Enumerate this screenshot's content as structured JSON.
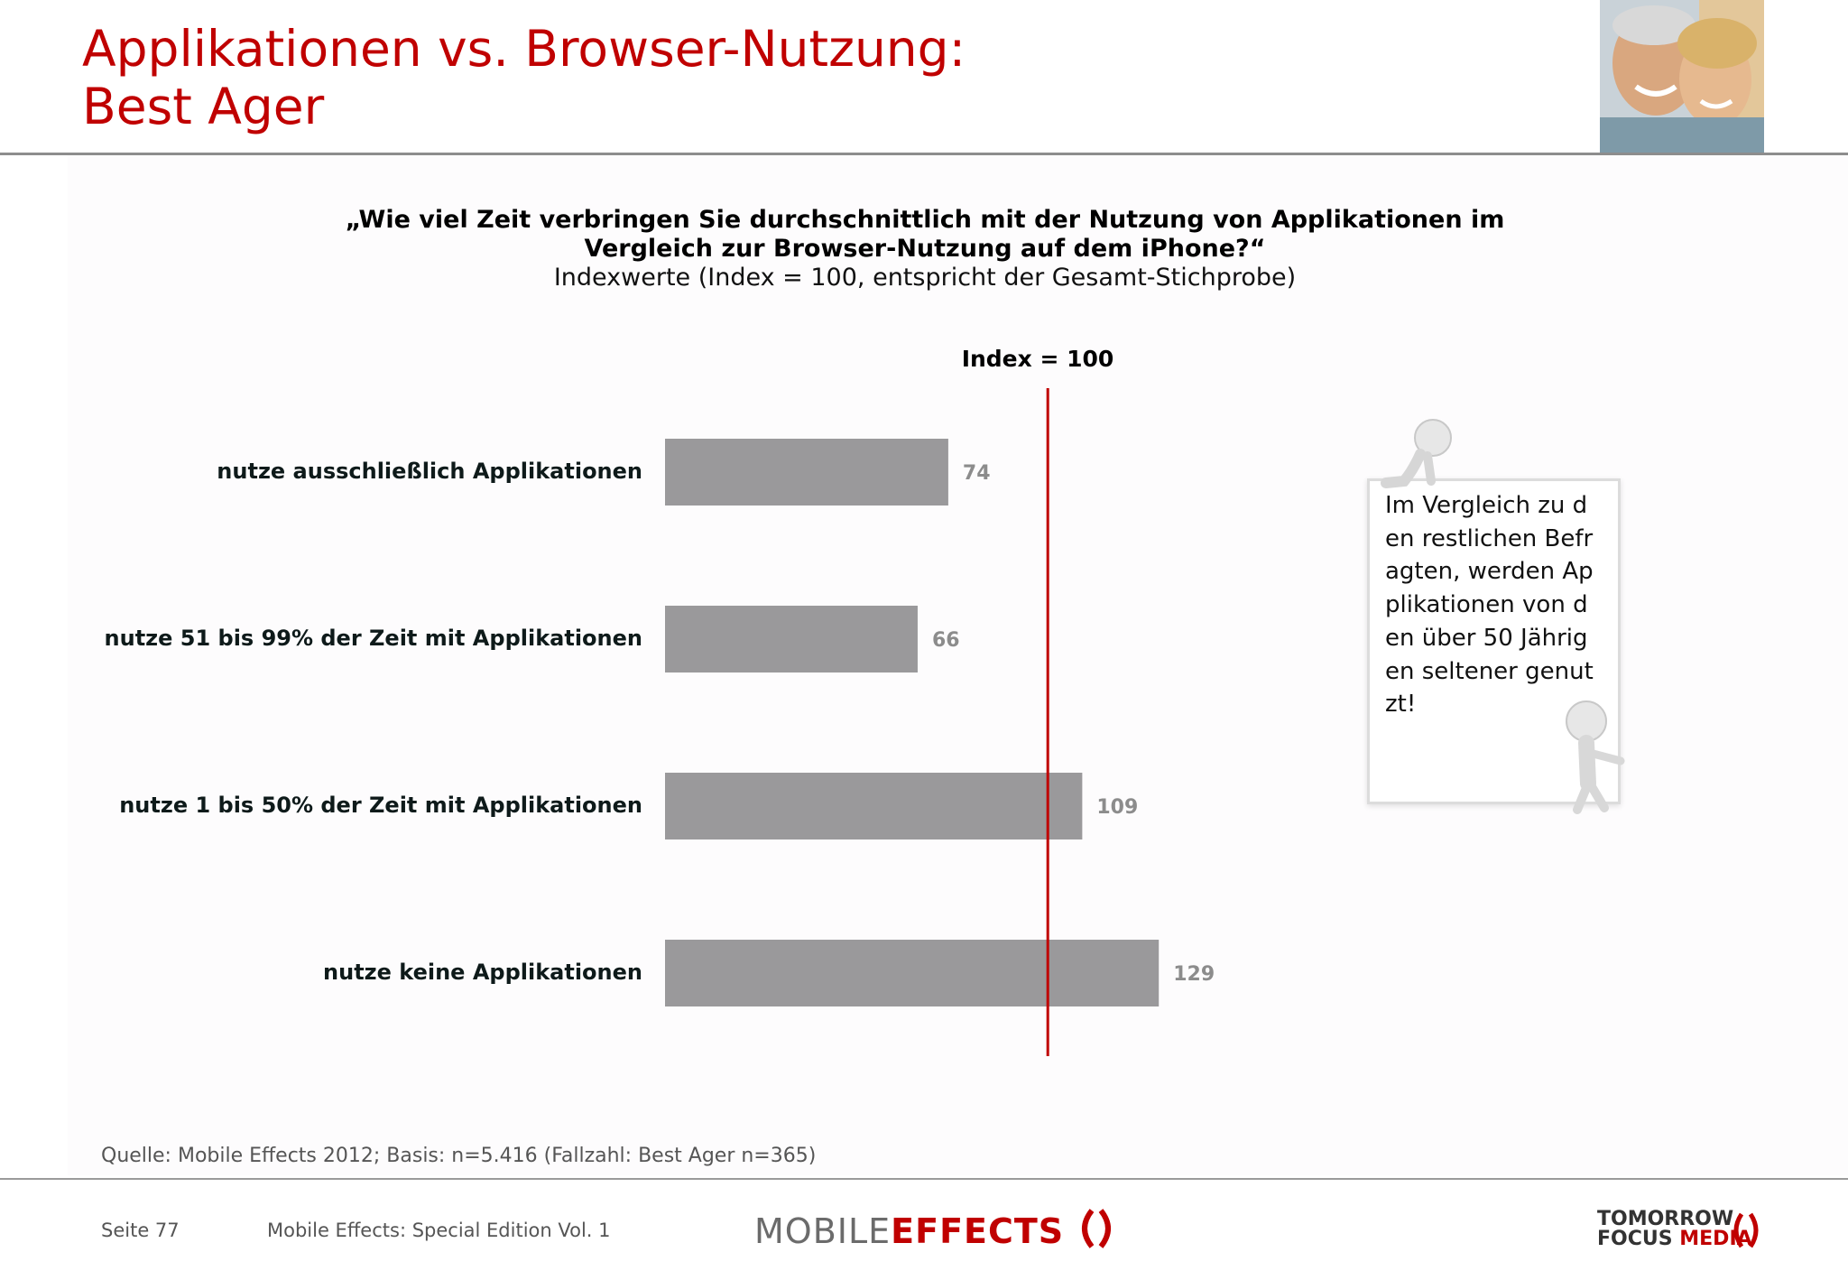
{
  "header": {
    "title_line1": "Applikationen vs. Browser-Nutzung:",
    "title_line2": "Best Ager"
  },
  "question": {
    "line1": "„Wie viel Zeit verbringen Sie durchschnittlich mit der Nutzung von Applikationen im",
    "line2": "Vergleich zur Browser-Nutzung auf dem iPhone?“",
    "subtitle": "Indexwerte (Index = 100, entspricht der Gesamt-Stichprobe)"
  },
  "colors": {
    "accent": "#c00000",
    "bar": "#9a999b",
    "value_label": "#8c8c8c"
  },
  "chart_data": {
    "type": "bar",
    "orientation": "horizontal",
    "categories": [
      "nutze ausschließlich Applikationen",
      "nutze 51 bis 99% der Zeit mit Applikationen",
      "nutze 1 bis 50% der Zeit mit Applikationen",
      "nutze keine Applikationen"
    ],
    "values": [
      74,
      66,
      109,
      129
    ],
    "reference_line": {
      "value": 100,
      "label": "Index = 100"
    },
    "xlim": [
      0,
      129
    ],
    "grid": false
  },
  "callout": {
    "text": "Im Vergleich zu den restlichen Befragten, werden Applikationen von den über 50 Jährigen seltener genutzt!"
  },
  "footer": {
    "source": "Quelle: Mobile Effects 2012; Basis: n=5.416 (Fallzahl: Best Ager n=365)",
    "page": "Seite 77",
    "publication": "Mobile Effects: Special Edition Vol. 1",
    "logo_mobile": "MOBILE",
    "logo_effects": "EFFECTS",
    "logo_tfm_line1": "TOMORROW",
    "logo_tfm_focus": "FOCUS",
    "logo_tfm_media": "MEDIA"
  }
}
